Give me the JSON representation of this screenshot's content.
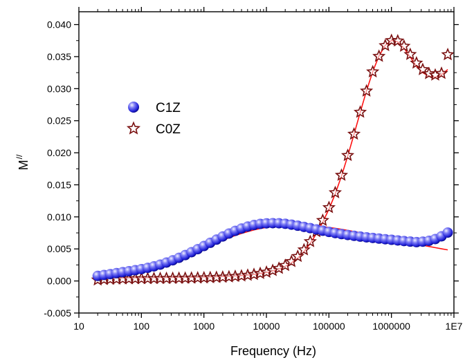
{
  "chart_data": {
    "type": "scatter",
    "xlabel": "Frequency (Hz)",
    "ylabel_main": "M",
    "ylabel_sup": "//",
    "x_scale": "log",
    "xlim": [
      10,
      10000000
    ],
    "ylim": [
      -0.005,
      0.042
    ],
    "x_ticks": [
      10,
      100,
      1000,
      10000,
      100000,
      1000000,
      10000000
    ],
    "x_tick_labels": [
      "10",
      "100",
      "1000",
      "10000",
      "100000",
      "1000000",
      "1E7"
    ],
    "y_ticks": [
      -0.005,
      0,
      0.005,
      0.01,
      0.015,
      0.02,
      0.025,
      0.03,
      0.035,
      0.04
    ],
    "y_tick_labels": [
      "-0.005",
      "0.000",
      "0.005",
      "0.010",
      "0.015",
      "0.020",
      "0.025",
      "0.030",
      "0.035",
      "0.040"
    ],
    "grid": false,
    "legend_position": "left-middle",
    "series": [
      {
        "name": "C1Z",
        "marker": "sphere",
        "color": "#2a2ae0",
        "x": [
          20,
          25.2,
          31.7,
          39.9,
          50.2,
          63.2,
          79.6,
          100.2,
          126.2,
          158.8,
          200,
          251.8,
          317,
          399.1,
          502.4,
          632.5,
          796.2,
          1002.4,
          1261.9,
          1588.7,
          2000,
          2517.9,
          3169.8,
          3990.5,
          5023.8,
          6324.6,
          7962.1,
          10023.7,
          12619.1,
          15886.6,
          20000,
          25178.5,
          31697.9,
          39905.2,
          50237.7,
          63245.6,
          79621.4,
          100237,
          126191,
          158866,
          200000,
          251785,
          316979,
          399052,
          502377,
          632456,
          796214,
          1002370,
          1261910,
          1588660,
          2000000,
          2517850,
          3169790,
          3990520,
          5023770,
          6324560,
          7962140
        ],
        "y": [
          0.00079,
          0.00093,
          0.00107,
          0.00122,
          0.00137,
          0.00152,
          0.00168,
          0.00185,
          0.00205,
          0.00228,
          0.00255,
          0.00287,
          0.00322,
          0.00361,
          0.00404,
          0.00449,
          0.00496,
          0.00545,
          0.00595,
          0.00645,
          0.00694,
          0.0074,
          0.00782,
          0.00818,
          0.00849,
          0.00873,
          0.0089,
          0.00899,
          0.00902,
          0.009,
          0.00892,
          0.00879,
          0.00862,
          0.00844,
          0.00824,
          0.00804,
          0.00784,
          0.00765,
          0.00747,
          0.00731,
          0.00717,
          0.00704,
          0.00692,
          0.00681,
          0.00671,
          0.00661,
          0.00651,
          0.00642,
          0.00632,
          0.00623,
          0.00614,
          0.00606,
          0.00613,
          0.00627,
          0.00654,
          0.00697,
          0.00755
        ]
      },
      {
        "name": "C0Z",
        "marker": "star",
        "color": "#7a1010",
        "x": [
          20,
          25.2,
          31.7,
          39.9,
          50.2,
          63.2,
          79.6,
          100.2,
          126.2,
          158.8,
          200,
          251.8,
          317,
          399.1,
          502.4,
          632.5,
          796.2,
          1002.4,
          1261.9,
          1588.7,
          2000,
          2517.9,
          3169.8,
          3990.5,
          5023.8,
          6324.6,
          7962.1,
          10023.7,
          12619.1,
          15886.6,
          20000,
          25178.5,
          31697.9,
          39905.2,
          50237.7,
          63245.6,
          79621.4,
          100237,
          126191,
          158866,
          200000,
          251785,
          316979,
          399052,
          502377,
          632456,
          796214,
          1002370,
          1261910,
          1588660,
          2000000,
          2517850,
          3169790,
          3990520,
          5023770,
          6324560,
          7962140
        ],
        "y": [
          0.00017,
          0.00023,
          0.00027,
          0.0003,
          0.00032,
          0.00034,
          0.00035,
          0.00036,
          0.00037,
          0.00038,
          0.00039,
          0.0004,
          0.00041,
          0.00042,
          0.00043,
          0.00045,
          0.00047,
          0.00049,
          0.00052,
          0.00055,
          0.00059,
          0.00064,
          0.00071,
          0.00079,
          0.00089,
          0.00101,
          0.00117,
          0.00137,
          0.00163,
          0.00197,
          0.00242,
          0.00303,
          0.00383,
          0.00486,
          0.00615,
          0.00769,
          0.00945,
          0.01145,
          0.01378,
          0.01649,
          0.01958,
          0.02291,
          0.02633,
          0.02964,
          0.03263,
          0.03505,
          0.03672,
          0.03752,
          0.03745,
          0.03663,
          0.03534,
          0.034,
          0.03298,
          0.03235,
          0.03212,
          0.03238,
          0.03531
        ]
      }
    ],
    "fits": [
      {
        "color": "#ff1010",
        "x": [
          20,
          25.2,
          31.7,
          39.9,
          50.2,
          63.2,
          79.6,
          100.2,
          126.2,
          158.8,
          200,
          251.8,
          317,
          399.1,
          502.4,
          632.5,
          796.2,
          1002.4,
          1261.9,
          1588.7,
          2000,
          2517.9,
          3169.8,
          3990.5,
          5023.8,
          6324.6,
          7962.1,
          10023.7,
          12619.1,
          15886.6,
          20000,
          25178.5,
          31697.9,
          39905.2,
          50237.7,
          63245.6,
          79621.4,
          100237,
          126191,
          158866,
          200000,
          251785,
          316979,
          399052,
          502377,
          632456,
          796214,
          1002370,
          1261910,
          1588660,
          2000000,
          2517850,
          3169790,
          3990520,
          5023770,
          6324560,
          7962140
        ],
        "y": [
          0.00041,
          0.00052,
          0.00064,
          0.00079,
          0.00096,
          0.00115,
          0.00137,
          0.00161,
          0.00188,
          0.00217,
          0.00248,
          0.00282,
          0.00318,
          0.00356,
          0.00395,
          0.00436,
          0.00477,
          0.00518,
          0.00559,
          0.00599,
          0.00637,
          0.00674,
          0.00709,
          0.00741,
          0.0077,
          0.00796,
          0.00818,
          0.00836,
          0.00851,
          0.00862,
          0.00869,
          0.00873,
          0.00873,
          0.0087,
          0.00865,
          0.00857,
          0.00847,
          0.00835,
          0.00821,
          0.00806,
          0.00789,
          0.00772,
          0.00753,
          0.00734,
          0.00715,
          0.00695,
          0.00675,
          0.00655,
          0.00635,
          0.00615,
          0.00595,
          0.00576,
          0.00557,
          0.00538,
          0.0052,
          0.00502,
          0.00485
        ]
      },
      {
        "color": "#ff1010",
        "x": [
          20,
          25.2,
          31.7,
          39.9,
          50.2,
          63.2,
          79.6,
          100.2,
          126.2,
          158.8,
          200,
          251.8,
          317,
          399.1,
          502.4,
          632.5,
          796.2,
          1002.4,
          1261.9,
          1588.7,
          2000,
          2517.9,
          3169.8,
          3990.5,
          5023.8,
          6324.6,
          7962.1,
          10023.7,
          12619.1,
          15886.6,
          20000,
          25178.5,
          31697.9,
          39905.2,
          50237.7,
          63245.6,
          79621.4,
          100237,
          126191,
          158866,
          200000,
          251785,
          316979,
          399052,
          502377,
          632456,
          796214,
          1002370,
          1261910,
          1588660,
          2000000,
          2517850,
          3169790,
          3990520,
          5023770,
          6324560,
          7962140
        ],
        "y": [
          0.00044,
          0.00045,
          0.00046,
          0.00047,
          0.00048,
          0.00049,
          0.0005,
          0.00051,
          0.00052,
          0.00053,
          0.00054,
          0.00055,
          0.00056,
          0.00057,
          0.00058,
          0.00059,
          0.0006,
          0.00062,
          0.00064,
          0.00066,
          0.00069,
          0.00073,
          0.00078,
          0.00084,
          0.00092,
          0.00102,
          0.00116,
          0.00133,
          0.00156,
          0.00186,
          0.00228,
          0.00284,
          0.00358,
          0.00458,
          0.00586,
          0.0074,
          0.00918,
          0.01121,
          0.01359,
          0.01636,
          0.01949,
          0.02286,
          0.02631,
          0.02965,
          0.03266,
          0.0351,
          0.03677,
          0.03752,
          0.03731,
          0.03633,
          0.03493,
          0.03352,
          0.0325,
          0.03193,
          0.03178,
          0.03219,
          0.03298
        ]
      }
    ]
  }
}
